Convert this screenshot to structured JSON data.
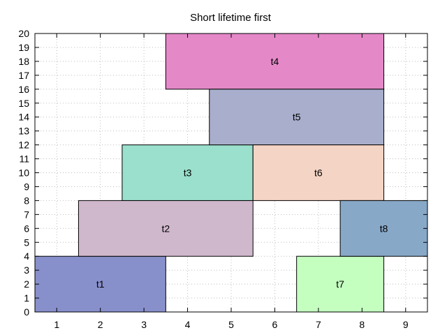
{
  "chart_data": {
    "type": "bar",
    "title": "Short lifetime first",
    "xlabel": "",
    "ylabel": "",
    "xlim": [
      0.5,
      9.5
    ],
    "ylim": [
      0,
      20
    ],
    "x_ticks": [
      1,
      2,
      3,
      4,
      5,
      6,
      7,
      8,
      9
    ],
    "y_ticks": [
      0,
      1,
      2,
      3,
      4,
      5,
      6,
      7,
      8,
      9,
      10,
      11,
      12,
      13,
      14,
      15,
      16,
      17,
      18,
      19,
      20
    ],
    "grid": true,
    "blocks": [
      {
        "name": "t1",
        "x_start": 0.5,
        "x_end": 3.5,
        "y_start": 0,
        "y_end": 4,
        "color": "#8890cc"
      },
      {
        "name": "t2",
        "x_start": 1.5,
        "x_end": 5.5,
        "y_start": 4,
        "y_end": 8,
        "color": "#d0b8cc"
      },
      {
        "name": "t3",
        "x_start": 2.5,
        "x_end": 5.5,
        "y_start": 8,
        "y_end": 12,
        "color": "#9ae0cc"
      },
      {
        "name": "t4",
        "x_start": 3.5,
        "x_end": 8.5,
        "y_start": 16,
        "y_end": 20,
        "color": "#e488c8"
      },
      {
        "name": "t5",
        "x_start": 4.5,
        "x_end": 8.5,
        "y_start": 12,
        "y_end": 16,
        "color": "#a8aecc"
      },
      {
        "name": "t6",
        "x_start": 5.5,
        "x_end": 8.5,
        "y_start": 8,
        "y_end": 12,
        "color": "#f4d4c4"
      },
      {
        "name": "t7",
        "x_start": 6.5,
        "x_end": 8.5,
        "y_start": 0,
        "y_end": 4,
        "color": "#c4ffc0"
      },
      {
        "name": "t8",
        "x_start": 7.5,
        "x_end": 9.5,
        "y_start": 4,
        "y_end": 8,
        "color": "#88a8c8"
      }
    ]
  }
}
